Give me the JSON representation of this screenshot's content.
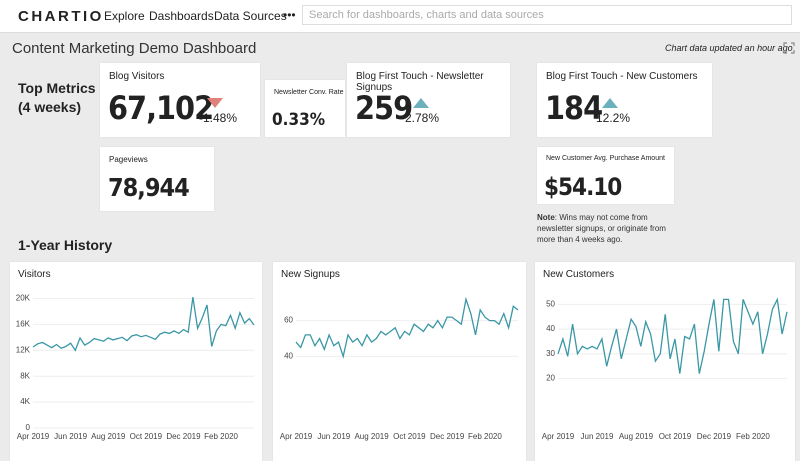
{
  "nav": {
    "logo": "CHARTIO",
    "links": [
      "Explore",
      "Dashboards",
      "Data Sources"
    ],
    "more": "•••",
    "search_placeholder": "Search for dashboards, charts and data sources"
  },
  "header": {
    "title": "Content Marketing Demo Dashboard",
    "updated": "Chart data updated an hour ago"
  },
  "metrics": {
    "title": [
      "Top Metrics",
      "(4 weeks)"
    ],
    "tiles": [
      {
        "title": "Blog Visitors",
        "value": "67,102",
        "change": "-1.48%"
      },
      {
        "title": "Newsletter Conv. Rate",
        "value": "0.33%"
      },
      {
        "title": "Blog First Touch - Newsletter Signups",
        "value": "259",
        "change": "2.78%"
      },
      {
        "title": "Blog First Touch - New Customers",
        "value": "184",
        "change": "12.2%"
      },
      {
        "title": "Pageviews",
        "value": "78,944"
      },
      {
        "title": "New Customer Avg. Purchase Amount",
        "value": "$54.10"
      }
    ],
    "note": {
      "label": "Note",
      "text": ": Wins may not come from newsletter signups, or originate from more than 4 weeks ago."
    }
  },
  "history": {
    "title": "1-Year History"
  },
  "chart_data": [
    {
      "type": "line",
      "title": "Visitors",
      "color": "#3a97a6",
      "grid": true,
      "categories": [
        "Apr 2019",
        null,
        null,
        null,
        null,
        null,
        null,
        null,
        "Jun 2019",
        null,
        null,
        null,
        null,
        null,
        null,
        null,
        "Aug 2019",
        null,
        null,
        null,
        null,
        null,
        null,
        null,
        "Oct 2019",
        null,
        null,
        null,
        null,
        null,
        null,
        null,
        "Dec 2019",
        null,
        null,
        null,
        null,
        null,
        null,
        null,
        "Feb 2020",
        null,
        null,
        null,
        null,
        null,
        null,
        null
      ],
      "values": [
        12500,
        13000,
        13200,
        12800,
        12400,
        12900,
        12300,
        12600,
        13100,
        12000,
        13900,
        12800,
        13200,
        13800,
        13600,
        13400,
        13900,
        13600,
        13800,
        14000,
        13500,
        14200,
        14400,
        14100,
        14300,
        14000,
        13700,
        14500,
        14800,
        14600,
        15000,
        14600,
        15200,
        14800,
        20200,
        15400,
        17000,
        19000,
        12600,
        15000,
        16000,
        15800,
        17400,
        15400,
        17800,
        16200,
        16900,
        15900
      ],
      "ylim": [
        0,
        21000
      ],
      "yticks": [
        0,
        {
          "value": 4000,
          "label": "4K"
        },
        {
          "value": 8000,
          "label": "8K"
        },
        {
          "value": 12000,
          "label": "12K"
        },
        {
          "value": 16000,
          "label": "16K"
        },
        {
          "value": 20000,
          "label": "20K"
        }
      ]
    },
    {
      "type": "line",
      "title": "New Signups",
      "color": "#3a97a6",
      "grid": true,
      "categories": [
        "Apr 2019",
        null,
        null,
        null,
        null,
        null,
        null,
        null,
        "Jun 2019",
        null,
        null,
        null,
        null,
        null,
        null,
        null,
        "Aug 2019",
        null,
        null,
        null,
        null,
        null,
        null,
        null,
        "Oct 2019",
        null,
        null,
        null,
        null,
        null,
        null,
        null,
        "Dec 2019",
        null,
        null,
        null,
        null,
        null,
        null,
        null,
        "Feb 2020",
        null,
        null,
        null,
        null,
        null,
        null,
        null
      ],
      "values": [
        48,
        45,
        52,
        52,
        46,
        50,
        44,
        52,
        46,
        48,
        40,
        52,
        48,
        50,
        46,
        52,
        48,
        50,
        54,
        52,
        54,
        56,
        50,
        54,
        52,
        58,
        56,
        54,
        58,
        56,
        60,
        56,
        62,
        62,
        60,
        58,
        72,
        64,
        52,
        66,
        62,
        60,
        60,
        58,
        64,
        56,
        68,
        66
      ],
      "ylim": [
        0,
        76
      ],
      "yticks": [
        40,
        60
      ]
    },
    {
      "type": "line",
      "title": "New Customers",
      "color": "#3a97a6",
      "grid": true,
      "categories": [
        "Apr 2019",
        null,
        null,
        null,
        null,
        null,
        null,
        null,
        "Jun 2019",
        null,
        null,
        null,
        null,
        null,
        null,
        null,
        "Aug 2019",
        null,
        null,
        null,
        null,
        null,
        null,
        null,
        "Oct 2019",
        null,
        null,
        null,
        null,
        null,
        null,
        null,
        "Dec 2019",
        null,
        null,
        null,
        null,
        null,
        null,
        null,
        "Feb 2020",
        null,
        null,
        null,
        null,
        null,
        null,
        null
      ],
      "values": [
        30,
        36,
        29,
        42,
        30,
        33,
        32,
        33,
        32,
        36,
        25,
        33,
        40,
        28,
        36,
        44,
        41,
        33,
        43,
        38,
        27,
        30,
        46,
        28,
        36,
        22,
        37,
        36,
        42,
        22,
        31,
        42,
        52,
        31,
        52,
        52,
        35,
        30,
        52,
        47,
        42,
        47,
        30,
        38,
        48,
        52,
        38,
        47
      ],
      "ylim": [
        0,
        55
      ],
      "yticks": [
        20,
        30,
        40,
        50
      ]
    }
  ]
}
